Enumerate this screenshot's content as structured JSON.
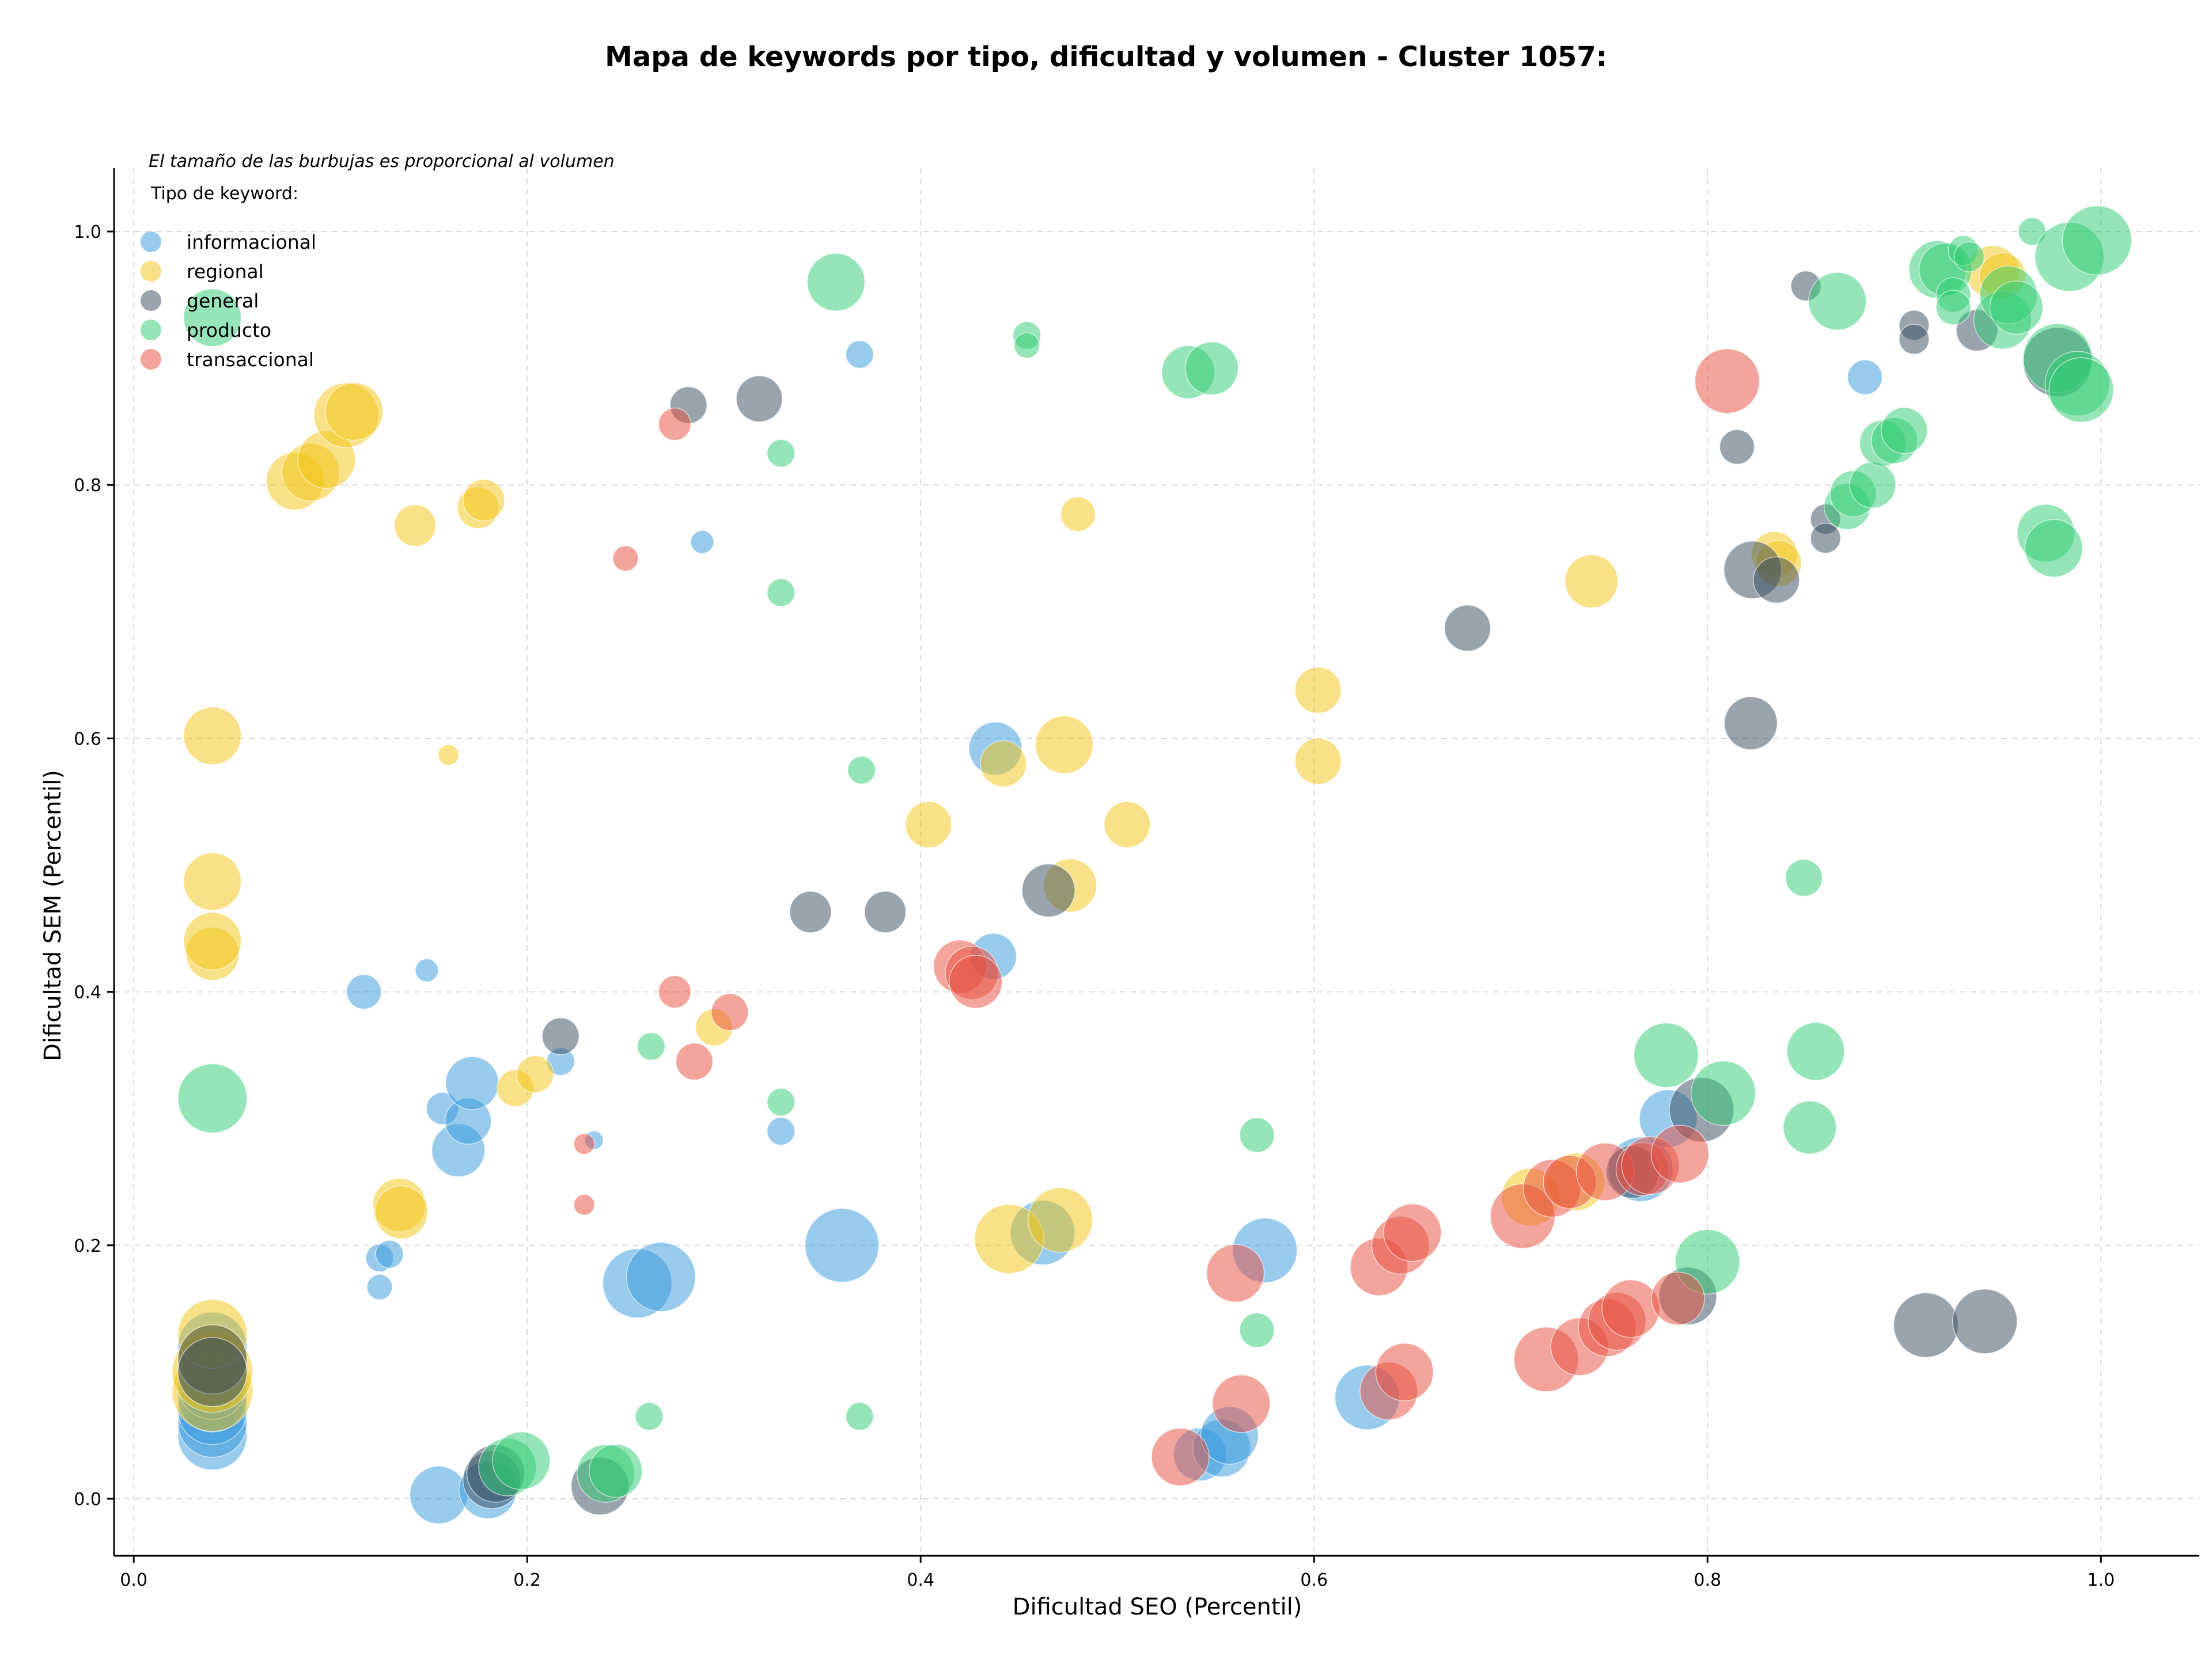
{
  "chart_data": {
    "type": "scatter",
    "title": "Mapa de keywords por tipo, dificultad y volumen - Cluster 1057:",
    "xlabel": "Dificultad SEO (Percentil)",
    "ylabel": "Dificultad SEM (Percentil)",
    "note": "El tamaño de las burbujas es proporcional al volumen",
    "legend_title": "Tipo de keyword:",
    "legend_position": "top-left",
    "xlim": [
      -0.01,
      1.05
    ],
    "ylim": [
      -0.045,
      1.05
    ],
    "x_ticks": [
      "0.0",
      "0.2",
      "0.4",
      "0.6",
      "0.8",
      "1.0"
    ],
    "y_ticks": [
      "0.0",
      "0.2",
      "0.4",
      "0.6",
      "0.8",
      "1.0"
    ],
    "grid": true,
    "series": [
      {
        "name": "informacional",
        "color": "#3498db",
        "points": [
          [
            0.04,
            0.05,
            3
          ],
          [
            0.04,
            0.06,
            3
          ],
          [
            0.04,
            0.07,
            3
          ],
          [
            0.04,
            0.08,
            3
          ],
          [
            0.04,
            0.09,
            3
          ],
          [
            0.04,
            0.1,
            3
          ],
          [
            0.04,
            0.12,
            3
          ],
          [
            0.117,
            0.4,
            1.5
          ],
          [
            0.125,
            0.19,
            1.2
          ],
          [
            0.13,
            0.193,
            1.2
          ],
          [
            0.125,
            0.167,
            1.1
          ],
          [
            0.149,
            0.417,
            1
          ],
          [
            0.155,
            0.003,
            2.5
          ],
          [
            0.157,
            0.308,
            1.4
          ],
          [
            0.165,
            0.275,
            2.3
          ],
          [
            0.17,
            0.298,
            2
          ],
          [
            0.172,
            0.328,
            2.3
          ],
          [
            0.18,
            0.007,
            2.5
          ],
          [
            0.217,
            0.345,
            1.2
          ],
          [
            0.234,
            0.283,
            0.8
          ],
          [
            0.256,
            0.17,
            3
          ],
          [
            0.268,
            0.175,
            3
          ],
          [
            0.289,
            0.755,
            1
          ],
          [
            0.329,
            0.29,
            1.2
          ],
          [
            0.36,
            0.2,
            3.2
          ],
          [
            0.369,
            0.903,
            1.2
          ],
          [
            0.437,
            0.428,
            2
          ],
          [
            0.438,
            0.592,
            2.3
          ],
          [
            0.462,
            0.21,
            2.8
          ],
          [
            0.542,
            0.035,
            2.3
          ],
          [
            0.553,
            0.04,
            2.5
          ],
          [
            0.557,
            0.05,
            2.5
          ],
          [
            0.575,
            0.196,
            2.8
          ],
          [
            0.627,
            0.08,
            2.8
          ],
          [
            0.766,
            0.26,
            2.8
          ],
          [
            0.78,
            0.3,
            2.5
          ],
          [
            0.88,
            0.885,
            1.5
          ]
        ]
      },
      {
        "name": "regional",
        "color": "#f1c40f",
        "points": [
          [
            0.04,
            0.085,
            3.5
          ],
          [
            0.04,
            0.1,
            3.5
          ],
          [
            0.04,
            0.11,
            3
          ],
          [
            0.04,
            0.13,
            3
          ],
          [
            0.04,
            0.43,
            2.3
          ],
          [
            0.04,
            0.44,
            2.5
          ],
          [
            0.04,
            0.487,
            2.5
          ],
          [
            0.04,
            0.602,
            2.5
          ],
          [
            0.082,
            0.803,
            2.5
          ],
          [
            0.09,
            0.81,
            2.5
          ],
          [
            0.098,
            0.82,
            2.5
          ],
          [
            0.108,
            0.855,
            2.8
          ],
          [
            0.112,
            0.858,
            2.5
          ],
          [
            0.143,
            0.768,
            1.8
          ],
          [
            0.16,
            0.587,
            0.9
          ],
          [
            0.175,
            0.782,
            1.8
          ],
          [
            0.178,
            0.788,
            1.8
          ],
          [
            0.135,
            0.232,
            2.3
          ],
          [
            0.136,
            0.226,
            2.3
          ],
          [
            0.194,
            0.324,
            1.6
          ],
          [
            0.204,
            0.335,
            1.6
          ],
          [
            0.295,
            0.372,
            1.6
          ],
          [
            0.404,
            0.532,
            2
          ],
          [
            0.442,
            0.58,
            2
          ],
          [
            0.445,
            0.205,
            3
          ],
          [
            0.471,
            0.22,
            2.8
          ],
          [
            0.473,
            0.595,
            2.5
          ],
          [
            0.476,
            0.484,
            2.3
          ],
          [
            0.48,
            0.777,
            1.5
          ],
          [
            0.505,
            0.532,
            2
          ],
          [
            0.602,
            0.638,
            2
          ],
          [
            0.602,
            0.582,
            2
          ],
          [
            0.71,
            0.238,
            2.5
          ],
          [
            0.733,
            0.25,
            2.5
          ],
          [
            0.741,
            0.724,
            2.3
          ],
          [
            0.834,
            0.745,
            2
          ],
          [
            0.836,
            0.738,
            2
          ],
          [
            0.945,
            0.968,
            2.3
          ],
          [
            0.95,
            0.965,
            2
          ]
        ]
      },
      {
        "name": "general",
        "color": "#34495e",
        "points": [
          [
            0.04,
            0.11,
            3
          ],
          [
            0.04,
            0.1,
            3
          ],
          [
            0.182,
            0.015,
            2.5
          ],
          [
            0.184,
            0.02,
            2.5
          ],
          [
            0.217,
            0.365,
            1.6
          ],
          [
            0.237,
            0.01,
            2.5
          ],
          [
            0.282,
            0.863,
            1.6
          ],
          [
            0.318,
            0.868,
            2
          ],
          [
            0.344,
            0.463,
            1.8
          ],
          [
            0.382,
            0.463,
            1.8
          ],
          [
            0.465,
            0.48,
            2.3
          ],
          [
            0.678,
            0.687,
            2
          ],
          [
            0.762,
            0.258,
            2.3
          ],
          [
            0.79,
            0.16,
            2.5
          ],
          [
            0.797,
            0.307,
            2.8
          ],
          [
            0.815,
            0.83,
            1.5
          ],
          [
            0.822,
            0.612,
            2.3
          ],
          [
            0.823,
            0.733,
            2.5
          ],
          [
            0.835,
            0.725,
            2
          ],
          [
            0.85,
            0.957,
            1.3
          ],
          [
            0.86,
            0.773,
            1.3
          ],
          [
            0.86,
            0.758,
            1.3
          ],
          [
            0.905,
            0.926,
            1.3
          ],
          [
            0.905,
            0.915,
            1.3
          ],
          [
            0.937,
            0.922,
            1.8
          ],
          [
            0.911,
            0.137,
            2.8
          ],
          [
            0.941,
            0.14,
            2.8
          ],
          [
            0.978,
            0.897,
            3
          ]
        ]
      },
      {
        "name": "producto",
        "color": "#2ecc71",
        "points": [
          [
            0.04,
            0.316,
            3
          ],
          [
            0.04,
            0.932,
            2.5
          ],
          [
            0.19,
            0.025,
            2.5
          ],
          [
            0.197,
            0.03,
            2.5
          ],
          [
            0.24,
            0.02,
            2.5
          ],
          [
            0.245,
            0.022,
            2.3
          ],
          [
            0.262,
            0.065,
            1.2
          ],
          [
            0.263,
            0.357,
            1.2
          ],
          [
            0.329,
            0.825,
            1.2
          ],
          [
            0.329,
            0.715,
            1.2
          ],
          [
            0.329,
            0.313,
            1.2
          ],
          [
            0.357,
            0.96,
            2.5
          ],
          [
            0.369,
            0.065,
            1.2
          ],
          [
            0.37,
            0.575,
            1.2
          ],
          [
            0.454,
            0.918,
            1.2
          ],
          [
            0.454,
            0.91,
            1.1
          ],
          [
            0.536,
            0.889,
            2.3
          ],
          [
            0.548,
            0.892,
            2.3
          ],
          [
            0.571,
            0.287,
            1.5
          ],
          [
            0.571,
            0.133,
            1.5
          ],
          [
            0.779,
            0.35,
            2.8
          ],
          [
            0.8,
            0.187,
            2.8
          ],
          [
            0.808,
            0.32,
            2.8
          ],
          [
            0.849,
            0.49,
            1.6
          ],
          [
            0.852,
            0.293,
            2.3
          ],
          [
            0.855,
            0.353,
            2.5
          ],
          [
            0.866,
            0.945,
            2.5
          ],
          [
            0.871,
            0.783,
            2
          ],
          [
            0.874,
            0.793,
            2
          ],
          [
            0.884,
            0.8,
            2
          ],
          [
            0.889,
            0.833,
            2
          ],
          [
            0.895,
            0.835,
            2
          ],
          [
            0.9,
            0.843,
            2
          ],
          [
            0.917,
            0.97,
            2.5
          ],
          [
            0.921,
            0.97,
            2.3
          ],
          [
            0.925,
            0.95,
            1.5
          ],
          [
            0.925,
            0.94,
            1.5
          ],
          [
            0.93,
            0.985,
            1.3
          ],
          [
            0.933,
            0.98,
            1.3
          ],
          [
            0.95,
            0.93,
            2.5
          ],
          [
            0.953,
            0.95,
            2.5
          ],
          [
            0.957,
            0.94,
            2.3
          ],
          [
            0.965,
            1.0,
            1.2
          ],
          [
            0.972,
            0.762,
            2.5
          ],
          [
            0.976,
            0.75,
            2.5
          ],
          [
            0.978,
            0.9,
            3
          ],
          [
            0.984,
            0.98,
            3
          ],
          [
            0.988,
            0.88,
            2.8
          ],
          [
            0.99,
            0.875,
            2.8
          ],
          [
            0.998,
            0.993,
            3
          ]
        ]
      },
      {
        "name": "transaccional",
        "color": "#e74c3c",
        "points": [
          [
            0.229,
            0.28,
            0.9
          ],
          [
            0.229,
            0.232,
            0.9
          ],
          [
            0.25,
            0.742,
            1.1
          ],
          [
            0.275,
            0.848,
            1.4
          ],
          [
            0.275,
            0.4,
            1.4
          ],
          [
            0.285,
            0.345,
            1.6
          ],
          [
            0.303,
            0.384,
            1.6
          ],
          [
            0.42,
            0.42,
            2.3
          ],
          [
            0.426,
            0.415,
            2.3
          ],
          [
            0.428,
            0.408,
            2.3
          ],
          [
            0.532,
            0.033,
            2.5
          ],
          [
            0.56,
            0.178,
            2.5
          ],
          [
            0.563,
            0.075,
            2.5
          ],
          [
            0.633,
            0.183,
            2.5
          ],
          [
            0.638,
            0.085,
            2.5
          ],
          [
            0.644,
            0.2,
            2.5
          ],
          [
            0.646,
            0.1,
            2.5
          ],
          [
            0.65,
            0.21,
            2.5
          ],
          [
            0.706,
            0.223,
            2.8
          ],
          [
            0.718,
            0.11,
            2.8
          ],
          [
            0.721,
            0.245,
            2.5
          ],
          [
            0.73,
            0.25,
            2.3
          ],
          [
            0.735,
            0.12,
            2.5
          ],
          [
            0.748,
            0.258,
            2.5
          ],
          [
            0.749,
            0.135,
            2.5
          ],
          [
            0.754,
            0.14,
            2.5
          ],
          [
            0.761,
            0.15,
            2.5
          ],
          [
            0.767,
            0.26,
            2.3
          ],
          [
            0.771,
            0.263,
            2.5
          ],
          [
            0.785,
            0.158,
            2.3
          ],
          [
            0.786,
            0.272,
            2.5
          ],
          [
            0.81,
            0.882,
            2.8
          ]
        ]
      }
    ]
  }
}
